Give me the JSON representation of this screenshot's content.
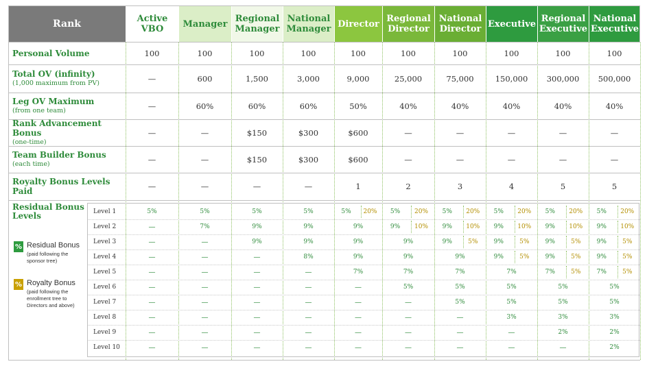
{
  "header": {
    "rank": "Rank",
    "columns": [
      "Active\nVBO",
      "Manager",
      "Regional\nManager",
      "National\nManager",
      "Director",
      "Regional\nDirector",
      "National\nDirector",
      "Executive",
      "Regional\nExecutive",
      "National\nExecutive"
    ],
    "colors": [
      "#ffffff",
      "#dbeec7",
      "#f1f8e8",
      "#dbeec7",
      "#8cc63f",
      "#7ab83a",
      "#6aae34",
      "#2e9b3f",
      "#3aa044",
      "#2e9b3f"
    ],
    "text_colors": [
      "#2e8b3a",
      "#2e8b3a",
      "#2e8b3a",
      "#2e8b3a",
      "#ffffff",
      "#ffffff",
      "#ffffff",
      "#ffffff",
      "#ffffff",
      "#ffffff"
    ],
    "rank_bg": "#7a7a7a"
  },
  "rows": [
    {
      "label": "Personal Volume",
      "sub": "",
      "values": [
        "100",
        "100",
        "100",
        "100",
        "100",
        "100",
        "100",
        "100",
        "100",
        "100"
      ]
    },
    {
      "label": "Total OV (infinity)",
      "sub": "(1,000 maximum from PV)",
      "values": [
        "—",
        "600",
        "1,500",
        "3,000",
        "9,000",
        "25,000",
        "75,000",
        "150,000",
        "300,000",
        "500,000"
      ]
    },
    {
      "label": "Leg OV Maximum",
      "sub": "(from one team)",
      "values": [
        "—",
        "60%",
        "60%",
        "60%",
        "50%",
        "40%",
        "40%",
        "40%",
        "40%",
        "40%"
      ]
    },
    {
      "label": "Rank Advancement Bonus",
      "sub": "(one-time)",
      "values": [
        "—",
        "—",
        "$150",
        "$300",
        "$600",
        "—",
        "—",
        "—",
        "—",
        "—"
      ]
    },
    {
      "label": "Team Builder Bonus",
      "sub": "(each time)",
      "values": [
        "—",
        "—",
        "$150",
        "$300",
        "$600",
        "—",
        "—",
        "—",
        "—",
        "—"
      ]
    },
    {
      "label": "Royalty Bonus Levels Paid",
      "sub": "",
      "values": [
        "—",
        "—",
        "—",
        "—",
        "1",
        "2",
        "3",
        "4",
        "5",
        "5"
      ]
    }
  ],
  "residual": {
    "title": "Residual Bonus\nLevels",
    "levels": [
      "Level 1",
      "Level 2",
      "Level 3",
      "Level 4",
      "Level 5",
      "Level 6",
      "Level 7",
      "Level 8",
      "Level 9",
      "Level 10"
    ],
    "legend": [
      {
        "icon": "%",
        "title": "Residual Bonus",
        "desc": "(paid following the\nsponsor tree)",
        "color": "#2e9b3f"
      },
      {
        "icon": "%",
        "title": "Royalty Bonus",
        "desc": "(paid following the\nenrollment tree to\nDirectors and above)",
        "color": "#c9a000"
      }
    ],
    "grid": [
      [
        [
          "5%",
          ""
        ],
        [
          "5%",
          ""
        ],
        [
          "5%",
          ""
        ],
        [
          "5%",
          ""
        ],
        [
          "5%",
          "20%"
        ],
        [
          "5%",
          "20%"
        ],
        [
          "5%",
          "20%"
        ],
        [
          "5%",
          "20%"
        ],
        [
          "5%",
          "20%"
        ],
        [
          "5%",
          "20%"
        ]
      ],
      [
        [
          "—",
          ""
        ],
        [
          "7%",
          ""
        ],
        [
          "9%",
          ""
        ],
        [
          "9%",
          ""
        ],
        [
          "9%",
          ""
        ],
        [
          "9%",
          "10%"
        ],
        [
          "9%",
          "10%"
        ],
        [
          "9%",
          "10%"
        ],
        [
          "9%",
          "10%"
        ],
        [
          "9%",
          "10%"
        ]
      ],
      [
        [
          "—",
          ""
        ],
        [
          "—",
          ""
        ],
        [
          "9%",
          ""
        ],
        [
          "9%",
          ""
        ],
        [
          "9%",
          ""
        ],
        [
          "9%",
          ""
        ],
        [
          "9%",
          "5%"
        ],
        [
          "9%",
          "5%"
        ],
        [
          "9%",
          "5%"
        ],
        [
          "9%",
          "5%"
        ]
      ],
      [
        [
          "—",
          ""
        ],
        [
          "—",
          ""
        ],
        [
          "—",
          ""
        ],
        [
          "8%",
          ""
        ],
        [
          "9%",
          ""
        ],
        [
          "9%",
          ""
        ],
        [
          "9%",
          ""
        ],
        [
          "9%",
          "5%"
        ],
        [
          "9%",
          "5%"
        ],
        [
          "9%",
          "5%"
        ]
      ],
      [
        [
          "—",
          ""
        ],
        [
          "—",
          ""
        ],
        [
          "—",
          ""
        ],
        [
          "—",
          ""
        ],
        [
          "7%",
          ""
        ],
        [
          "7%",
          ""
        ],
        [
          "7%",
          ""
        ],
        [
          "7%",
          ""
        ],
        [
          "7%",
          "5%"
        ],
        [
          "7%",
          "5%"
        ]
      ],
      [
        [
          "—",
          ""
        ],
        [
          "—",
          ""
        ],
        [
          "—",
          ""
        ],
        [
          "—",
          ""
        ],
        [
          "—",
          ""
        ],
        [
          "5%",
          ""
        ],
        [
          "5%",
          ""
        ],
        [
          "5%",
          ""
        ],
        [
          "5%",
          ""
        ],
        [
          "5%",
          ""
        ]
      ],
      [
        [
          "—",
          ""
        ],
        [
          "—",
          ""
        ],
        [
          "—",
          ""
        ],
        [
          "—",
          ""
        ],
        [
          "—",
          ""
        ],
        [
          "—",
          ""
        ],
        [
          "5%",
          ""
        ],
        [
          "5%",
          ""
        ],
        [
          "5%",
          ""
        ],
        [
          "5%",
          ""
        ]
      ],
      [
        [
          "—",
          ""
        ],
        [
          "—",
          ""
        ],
        [
          "—",
          ""
        ],
        [
          "—",
          ""
        ],
        [
          "—",
          ""
        ],
        [
          "—",
          ""
        ],
        [
          "—",
          ""
        ],
        [
          "3%",
          ""
        ],
        [
          "3%",
          ""
        ],
        [
          "3%",
          ""
        ]
      ],
      [
        [
          "—",
          ""
        ],
        [
          "—",
          ""
        ],
        [
          "—",
          ""
        ],
        [
          "—",
          ""
        ],
        [
          "—",
          ""
        ],
        [
          "—",
          ""
        ],
        [
          "—",
          ""
        ],
        [
          "—",
          ""
        ],
        [
          "2%",
          ""
        ],
        [
          "2%",
          ""
        ]
      ],
      [
        [
          "—",
          ""
        ],
        [
          "—",
          ""
        ],
        [
          "—",
          ""
        ],
        [
          "—",
          ""
        ],
        [
          "—",
          ""
        ],
        [
          "—",
          ""
        ],
        [
          "—",
          ""
        ],
        [
          "—",
          ""
        ],
        [
          "—",
          ""
        ],
        [
          "2%",
          ""
        ]
      ]
    ],
    "split_mode": [
      false,
      false,
      false,
      false,
      true,
      true,
      true,
      true,
      true,
      true
    ]
  }
}
